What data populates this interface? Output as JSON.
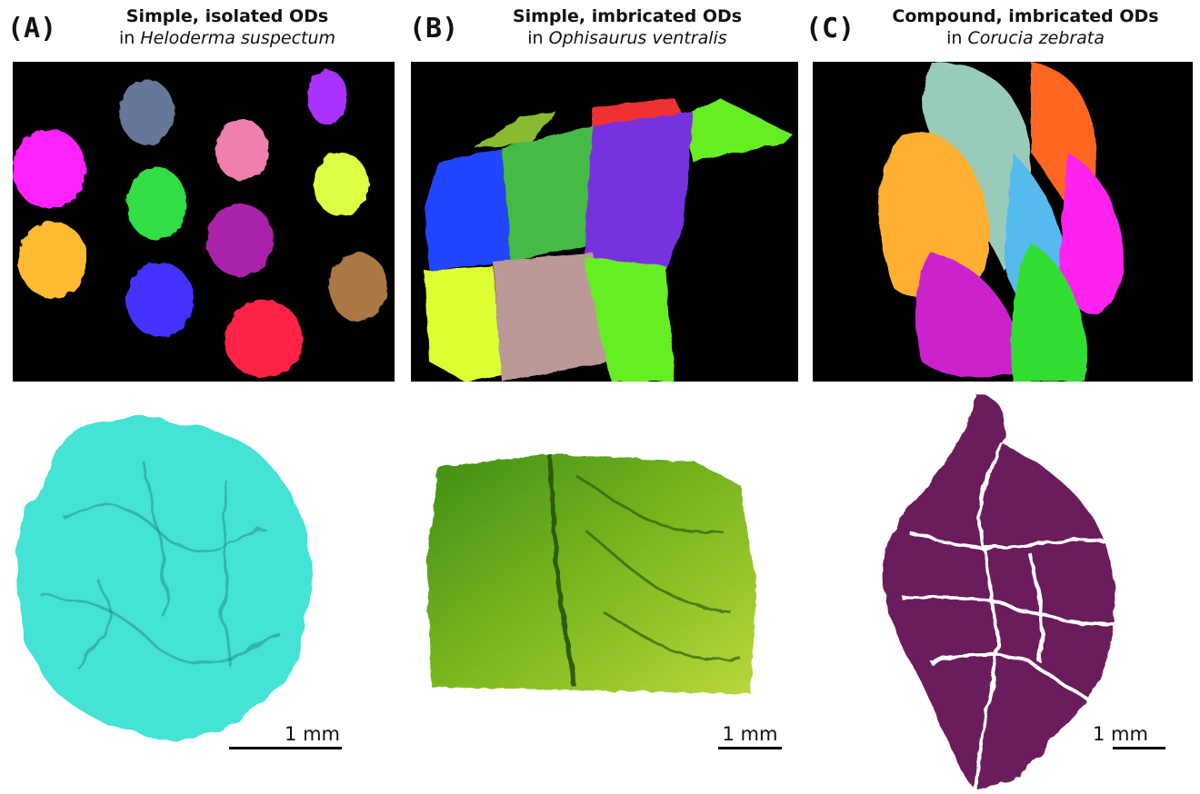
{
  "panels": [
    {
      "letter": "(A)",
      "title": "Simple, isolated ODs",
      "prefix": "in ",
      "species": "Heloderma suspectum",
      "scale": "1 mm",
      "colors": [
        "#ff22ff",
        "#667799",
        "#ee7fae",
        "#aa33ff",
        "#33dd44",
        "#ddff44",
        "#ffbb33",
        "#aa22aa",
        "#4433ff",
        "#aa7744",
        "#ff2244"
      ],
      "closeup_color": "#44e2d6"
    },
    {
      "letter": "(B)",
      "title": "Simple, imbricated ODs",
      "prefix": "in ",
      "species": "Ophisaurus ventralis",
      "scale": "1 mm",
      "colors": [
        "#66ee22",
        "#88bb33",
        "#ee3333",
        "#2244ff",
        "#44bb44",
        "#7733dd",
        "#ddff33",
        "#bb9999"
      ],
      "closeup_color": "#8cc21e"
    },
    {
      "letter": "(C)",
      "title": "Compound, imbricated ODs",
      "prefix": "in ",
      "species": "Corucia zebrata",
      "scale": "1 mm",
      "colors": [
        "#99ccb8",
        "#ff6622",
        "#ffb030",
        "#55bbee",
        "#ff22ee",
        "#cc22cc",
        "#33dd33"
      ],
      "closeup_color": "#6b1f5c"
    }
  ]
}
